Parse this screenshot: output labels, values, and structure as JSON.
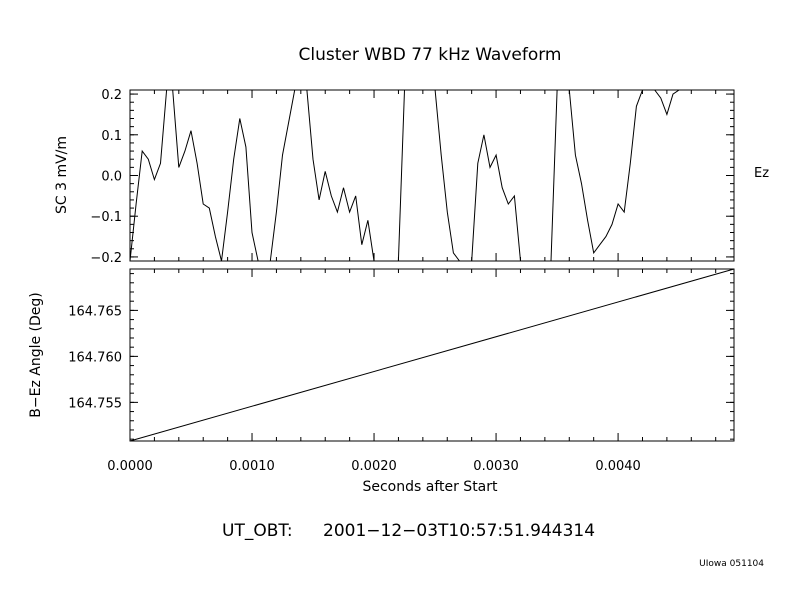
{
  "chart_data": [
    {
      "type": "line",
      "title": "Cluster WBD 77 kHz Waveform",
      "ylabel": "SC 3 mV/m",
      "channel_label": "Ez",
      "ylim": [
        -0.21,
        0.21
      ],
      "yticks": [
        -0.2,
        -0.1,
        0.0,
        0.1,
        0.2
      ],
      "ytick_labels": [
        "−0.2",
        "−0.1",
        "0.0",
        "0.1",
        "0.2"
      ],
      "xlim": [
        0.0,
        0.00495
      ],
      "series": [
        {
          "x": [
            0.0,
            5e-05,
            0.0001,
            0.00015,
            0.0002,
            0.00025,
            0.0003,
            0.00035,
            0.0004,
            0.00045,
            0.0005,
            0.00055,
            0.0006,
            0.00065,
            0.0007,
            0.00075,
            0.0008,
            0.00085,
            0.0009,
            0.00095,
            0.001,
            0.00105,
            0.0011,
            0.00115,
            0.0012,
            0.00125,
            0.0013,
            0.00135,
            0.0014,
            0.00145,
            0.0015,
            0.00155,
            0.0016,
            0.00165,
            0.0017,
            0.00175,
            0.0018,
            0.00185,
            0.0019,
            0.00195,
            0.002,
            0.00205,
            0.0021,
            0.00215,
            0.0022,
            0.00225,
            0.0023,
            0.00235,
            0.0024,
            0.00245,
            0.0025,
            0.00255,
            0.0026,
            0.00265,
            0.0027,
            0.00275,
            0.0028,
            0.00285,
            0.0029,
            0.00295,
            0.003,
            0.00305,
            0.0031,
            0.00315,
            0.0032,
            0.00325,
            0.0033,
            0.00335,
            0.0034,
            0.00345,
            0.0035,
            0.00355,
            0.0036,
            0.00365,
            0.0037,
            0.00375,
            0.0038,
            0.00385,
            0.0039,
            0.00395,
            0.004,
            0.00405,
            0.0041,
            0.00415,
            0.0042,
            0.00425,
            0.0043,
            0.00435,
            0.0044,
            0.00445,
            0.0045,
            0.00455,
            0.0046,
            0.00465,
            0.0047,
            0.00475,
            0.0048
          ],
          "values": [
            -0.21,
            -0.07,
            0.06,
            0.04,
            -0.01,
            0.03,
            0.21,
            0.21,
            0.02,
            0.06,
            0.11,
            0.03,
            -0.07,
            -0.08,
            -0.15,
            -0.21,
            -0.09,
            0.04,
            0.14,
            0.07,
            -0.14,
            -0.21,
            -0.21,
            -0.21,
            -0.09,
            0.05,
            0.13,
            0.21,
            0.21,
            0.21,
            0.04,
            -0.06,
            0.01,
            -0.05,
            -0.09,
            -0.03,
            -0.09,
            -0.05,
            -0.17,
            -0.11,
            -0.21,
            -0.21,
            -0.21,
            -0.21,
            -0.21,
            0.21,
            0.21,
            0.21,
            0.21,
            0.21,
            0.21,
            0.05,
            -0.09,
            -0.19,
            -0.21,
            -0.21,
            -0.21,
            0.03,
            0.1,
            0.02,
            0.05,
            -0.03,
            -0.07,
            -0.05,
            -0.21,
            -0.21,
            -0.21,
            -0.21,
            -0.21,
            -0.21,
            0.21,
            0.21,
            0.21,
            0.05,
            -0.02,
            -0.11,
            -0.19,
            -0.17,
            -0.15,
            -0.12,
            -0.07,
            -0.09,
            0.03,
            0.17,
            0.21,
            0.21,
            0.21,
            0.19,
            0.15,
            0.2,
            0.21,
            0.21,
            0.21,
            0.21,
            0.21,
            0.21,
            0.21
          ]
        }
      ]
    },
    {
      "type": "line",
      "ylabel": "B−Ez Angle (Deg)",
      "xlabel": "Seconds after Start",
      "ylim": [
        164.7508,
        164.7695
      ],
      "yticks": [
        164.755,
        164.76,
        164.765
      ],
      "ytick_labels": [
        "164.755",
        "164.760",
        "164.765"
      ],
      "xlim": [
        0.0,
        0.00495
      ],
      "xticks": [
        0.0,
        0.001,
        0.002,
        0.003,
        0.004
      ],
      "xtick_labels": [
        "0.0000",
        "0.0010",
        "0.0020",
        "0.0030",
        "0.0040"
      ],
      "series": [
        {
          "x": [
            0.0,
            0.00495
          ],
          "values": [
            164.7508,
            164.7695
          ]
        }
      ]
    }
  ],
  "footer": {
    "ut_label": "UT_OBT:",
    "ut_value": "2001−12−03T10:57:51.944314",
    "credit": "UIowa 051104"
  }
}
